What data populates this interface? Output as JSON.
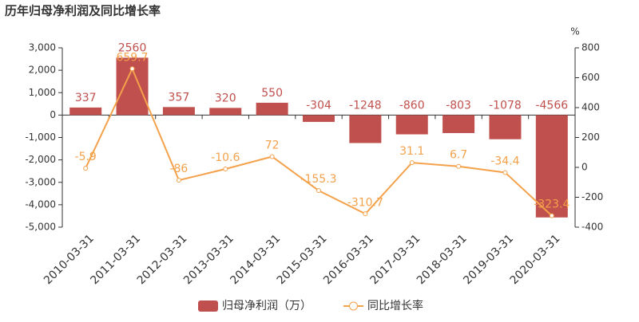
{
  "chart_data": {
    "type": "bar",
    "title": "历年归母净利润及同比增长率",
    "categories": [
      "2010-03-31",
      "2011-03-31",
      "2012-03-31",
      "2013-03-31",
      "2014-03-31",
      "2015-03-31",
      "2016-03-31",
      "2017-03-31",
      "2018-03-31",
      "2019-03-31",
      "2020-03-31"
    ],
    "series": [
      {
        "name": "归母净利润（万）",
        "type": "bar",
        "color": "#c0504d",
        "values": [
          337,
          2560,
          357,
          320,
          550,
          -304,
          -1248,
          -860,
          -803,
          -1078,
          -4566
        ]
      },
      {
        "name": "同比增长率",
        "type": "line",
        "axis": "y2",
        "color": "#f4a14b",
        "values": [
          -5.9,
          659.7,
          -86,
          -10.6,
          72,
          -155.3,
          -310.7,
          31.1,
          6.7,
          -34.4,
          -323.4
        ]
      }
    ],
    "ylim": [
      -5000,
      3000
    ],
    "yticks": [
      {
        "value": -5000,
        "label": "-5,000"
      },
      {
        "value": -4000,
        "label": "-4,000"
      },
      {
        "value": -3000,
        "label": "-3,000"
      },
      {
        "value": -2000,
        "label": "-2,000"
      },
      {
        "value": -1000,
        "label": "-1,000"
      },
      0,
      {
        "value": 1000,
        "label": "1,000"
      },
      {
        "value": 2000,
        "label": "2,000"
      },
      {
        "value": 3000,
        "label": "3,000"
      }
    ],
    "y2lim": [
      -400,
      800
    ],
    "y2ticks": [
      -400,
      -200,
      0,
      200,
      400,
      600,
      800
    ],
    "y2_label": "%",
    "grid": false
  }
}
